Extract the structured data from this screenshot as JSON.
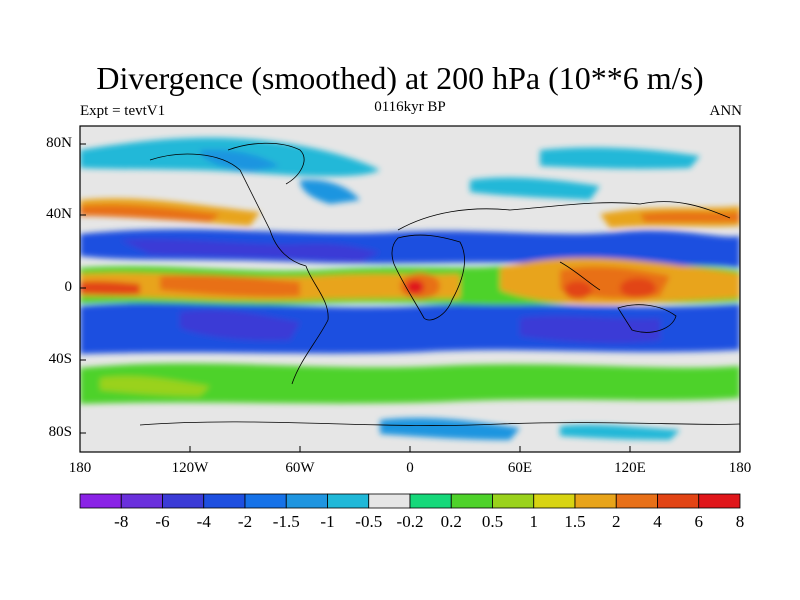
{
  "map": {
    "title": "Divergence (smoothed) at 200 hPa (10**6 m/s)",
    "left_string": "Expt = tevtV1",
    "center_string": "0116kyr BP",
    "right_string": "ANN",
    "lat_ticks": [
      "80N",
      "40N",
      "0",
      "40S",
      "80S"
    ],
    "lon_ticks": [
      "180",
      "120W",
      "60W",
      "0",
      "60E",
      "120E",
      "180"
    ],
    "colorbar": {
      "labels": [
        "-8",
        "-6",
        "-4",
        "-2",
        "-1.5",
        "-1",
        "-0.5",
        "-0.2",
        "0.2",
        "0.5",
        "1",
        "1.5",
        "2",
        "4",
        "6",
        "8"
      ],
      "colors": [
        "#8a22e6",
        "#6a30dc",
        "#3b3bd6",
        "#1e4fe0",
        "#1672e8",
        "#1f95e0",
        "#20b8d8",
        "#e6e6e6",
        "#16d87a",
        "#4ed22a",
        "#9ad21c",
        "#d8d412",
        "#e8a41a",
        "#e87018",
        "#e24414",
        "#e0161a"
      ]
    }
  }
}
